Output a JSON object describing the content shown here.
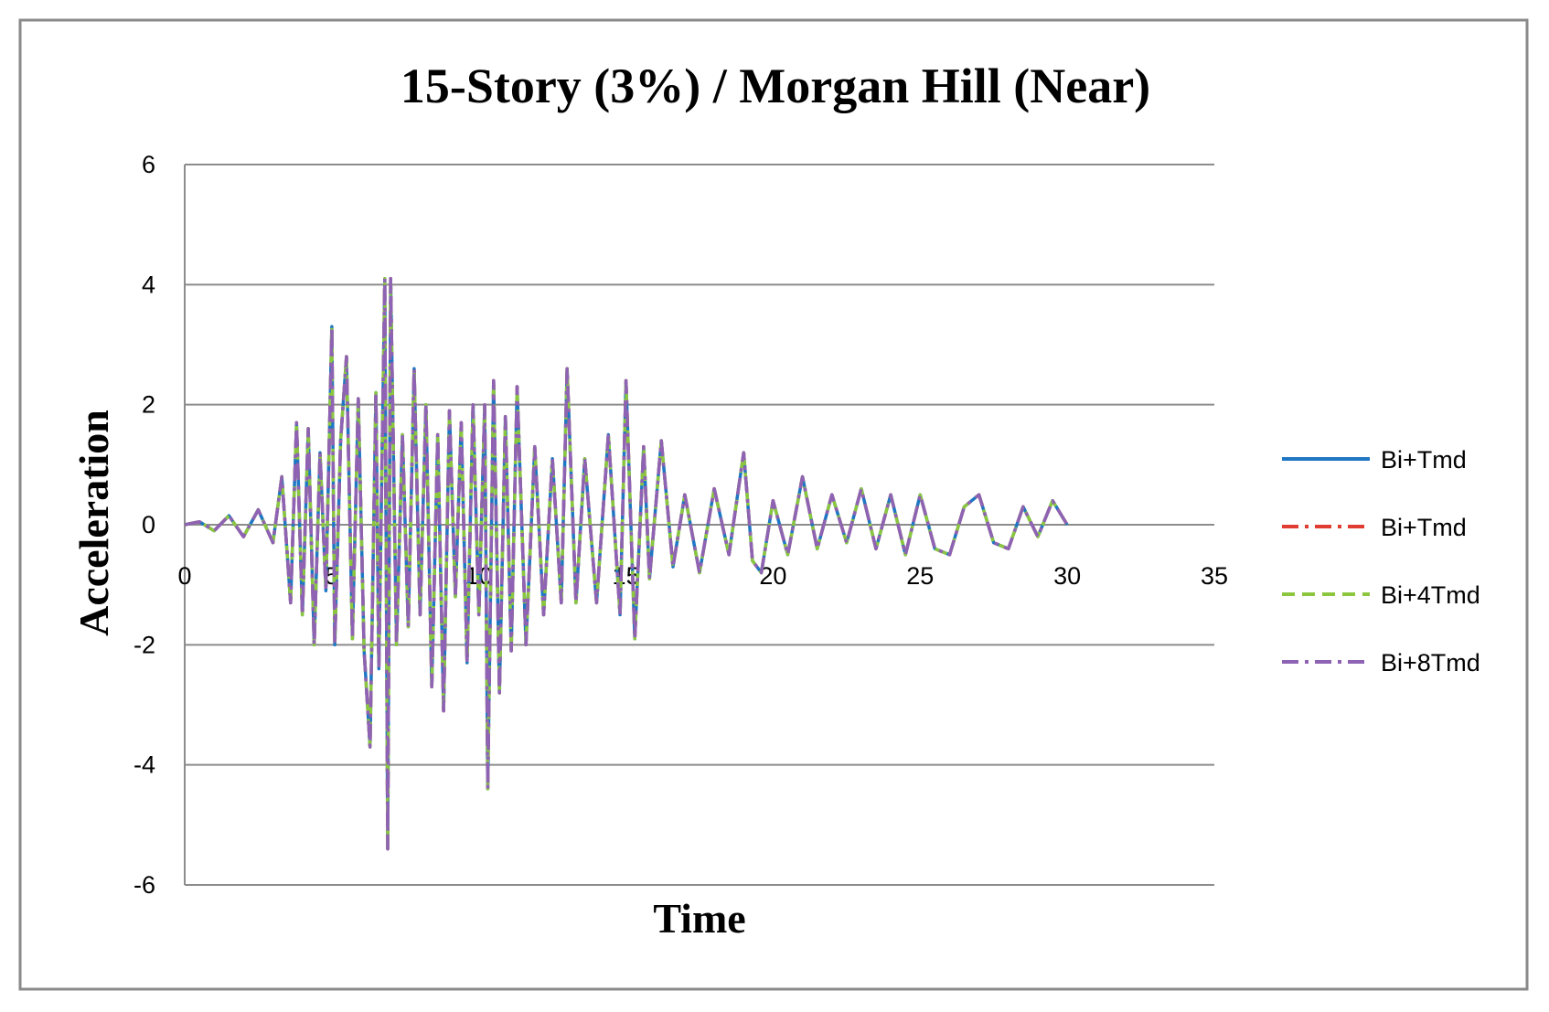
{
  "chart_data": {
    "type": "line",
    "title": "15-Story (3%) / Morgan Hill (Near)",
    "xlabel": "Time",
    "ylabel": "Acceleration",
    "xlim": [
      0,
      35
    ],
    "ylim": [
      -6,
      6
    ],
    "x_ticks": [
      "0",
      "5",
      "10",
      "15",
      "20",
      "25",
      "30",
      "35"
    ],
    "y_ticks": [
      "6",
      "4",
      "2",
      "0",
      "-2",
      "-4",
      "-6"
    ],
    "grid": "horizontal",
    "legend_position": "right",
    "x": [
      0,
      0.5,
      1,
      1.5,
      2,
      2.5,
      3,
      3.3,
      3.6,
      3.8,
      4,
      4.2,
      4.4,
      4.6,
      4.8,
      5,
      5.1,
      5.3,
      5.5,
      5.7,
      5.9,
      6.1,
      6.3,
      6.5,
      6.6,
      6.8,
      6.9,
      7,
      7.2,
      7.4,
      7.6,
      7.8,
      8,
      8.2,
      8.4,
      8.6,
      8.8,
      9,
      9.2,
      9.4,
      9.6,
      9.8,
      10,
      10.2,
      10.3,
      10.5,
      10.7,
      10.9,
      11.1,
      11.3,
      11.6,
      11.9,
      12.2,
      12.5,
      12.8,
      13,
      13.3,
      13.6,
      14,
      14.4,
      14.8,
      15,
      15.3,
      15.6,
      15.8,
      16.2,
      16.6,
      17,
      17.5,
      18,
      18.5,
      19,
      19.3,
      19.6,
      20,
      20.5,
      21,
      21.5,
      22,
      22.5,
      23,
      23.5,
      24,
      24.5,
      25,
      25.5,
      26,
      26.5,
      27,
      27.5,
      28,
      28.5,
      29,
      29.5,
      30
    ],
    "series": [
      {
        "name": "Bi+Tmd",
        "color": "#1f77c4",
        "dash": "solid",
        "values": [
          0,
          0.05,
          -0.1,
          0.15,
          -0.2,
          0.25,
          -0.3,
          0.8,
          -1.3,
          1.7,
          -1.5,
          1.6,
          -2,
          1.2,
          -1.1,
          3.3,
          -2,
          1.4,
          2.8,
          -1.9,
          2.1,
          -2.1,
          -3.7,
          2.2,
          -2.4,
          4.1,
          -5.4,
          4.1,
          -2,
          1.5,
          -1.7,
          2.6,
          -1.5,
          2,
          -2.7,
          1.5,
          -3.1,
          1.9,
          -1.2,
          1.7,
          -2.3,
          2,
          -1.5,
          2,
          -4.4,
          2.4,
          -2.8,
          1.8,
          -2.1,
          2.3,
          -2,
          1.3,
          -1.5,
          1.1,
          -1.3,
          2.6,
          -1.3,
          1.1,
          -1.3,
          1.5,
          -1.5,
          2.4,
          -1.9,
          1.3,
          -0.9,
          1.4,
          -0.7,
          0.5,
          -0.8,
          0.6,
          -0.5,
          1.2,
          -0.6,
          -0.8,
          0.4,
          -0.5,
          0.8,
          -0.4,
          0.5,
          -0.3,
          0.6,
          -0.4,
          0.5,
          -0.5,
          0.5,
          -0.4,
          -0.5,
          0.3,
          0.5,
          -0.3,
          -0.4,
          0.3,
          -0.2,
          0.4,
          0
        ]
      },
      {
        "name": "Bi+Tmd",
        "color": "#e03c31",
        "dash": "dashdot",
        "values": [
          0,
          0.05,
          -0.1,
          0.15,
          -0.2,
          0.25,
          -0.3,
          0.8,
          -1.3,
          1.7,
          -1.5,
          1.6,
          -2,
          1.2,
          -1.1,
          3.3,
          -2,
          1.4,
          2.8,
          -1.9,
          2.1,
          -2.1,
          -3.7,
          2.2,
          -2.4,
          4.1,
          -5.4,
          4.1,
          -2,
          1.5,
          -1.7,
          2.6,
          -1.5,
          2,
          -2.7,
          1.5,
          -3.1,
          1.9,
          -1.2,
          1.7,
          -2.3,
          2,
          -1.5,
          2,
          -4.4,
          2.4,
          -2.8,
          1.8,
          -2.1,
          2.3,
          -2,
          1.3,
          -1.5,
          1.1,
          -1.3,
          2.6,
          -1.3,
          1.1,
          -1.3,
          1.5,
          -1.5,
          2.4,
          -1.9,
          1.3,
          -0.9,
          1.4,
          -0.7,
          0.5,
          -0.8,
          0.6,
          -0.5,
          1.2,
          -0.6,
          -0.8,
          0.4,
          -0.5,
          0.8,
          -0.4,
          0.5,
          -0.3,
          0.6,
          -0.4,
          0.5,
          -0.5,
          0.5,
          -0.4,
          -0.5,
          0.3,
          0.5,
          -0.3,
          -0.4,
          0.3,
          -0.2,
          0.4,
          0
        ]
      },
      {
        "name": "Bi+4Tmd",
        "color": "#8cc63f",
        "dash": "dashed",
        "values": [
          0,
          0.05,
          -0.1,
          0.15,
          -0.2,
          0.25,
          -0.3,
          0.8,
          -1.3,
          1.7,
          -1.5,
          1.6,
          -2,
          1.2,
          -1.1,
          3.3,
          -2,
          1.4,
          2.8,
          -1.9,
          2.1,
          -2.1,
          -3.7,
          2.2,
          -2.4,
          4.1,
          -5.4,
          4.1,
          -2,
          1.5,
          -1.7,
          2.6,
          -1.5,
          2,
          -2.7,
          1.5,
          -3.1,
          1.9,
          -1.2,
          1.7,
          -2.3,
          2,
          -1.5,
          2,
          -4.4,
          2.4,
          -2.8,
          1.8,
          -2.1,
          2.3,
          -2,
          1.3,
          -1.5,
          1.1,
          -1.3,
          2.6,
          -1.3,
          1.1,
          -1.3,
          1.5,
          -1.5,
          2.4,
          -1.9,
          1.3,
          -0.9,
          1.4,
          -0.7,
          0.5,
          -0.8,
          0.6,
          -0.5,
          1.2,
          -0.6,
          -0.8,
          0.4,
          -0.5,
          0.8,
          -0.4,
          0.5,
          -0.3,
          0.6,
          -0.4,
          0.5,
          -0.5,
          0.5,
          -0.4,
          -0.5,
          0.3,
          0.5,
          -0.3,
          -0.4,
          0.3,
          -0.2,
          0.4,
          0
        ]
      },
      {
        "name": "Bi+8Tmd",
        "color": "#8e63b4",
        "dash": "dashdot",
        "values": [
          0,
          0.05,
          -0.1,
          0.15,
          -0.2,
          0.25,
          -0.3,
          0.8,
          -1.3,
          1.7,
          -1.5,
          1.6,
          -2,
          1.2,
          -1.1,
          3.3,
          -2,
          1.4,
          2.8,
          -1.9,
          2.1,
          -2.1,
          -3.7,
          2.2,
          -2.4,
          4.1,
          -5.4,
          4.1,
          -2,
          1.5,
          -1.7,
          2.6,
          -1.5,
          2,
          -2.7,
          1.5,
          -3.1,
          1.9,
          -1.2,
          1.7,
          -2.3,
          2,
          -1.5,
          2,
          -4.4,
          2.4,
          -2.8,
          1.8,
          -2.1,
          2.3,
          -2,
          1.3,
          -1.5,
          1.1,
          -1.3,
          2.6,
          -1.3,
          1.1,
          -1.3,
          1.5,
          -1.5,
          2.4,
          -1.9,
          1.3,
          -0.9,
          1.4,
          -0.7,
          0.5,
          -0.8,
          0.6,
          -0.5,
          1.2,
          -0.6,
          -0.8,
          0.4,
          -0.5,
          0.8,
          -0.4,
          0.5,
          -0.3,
          0.6,
          -0.4,
          0.5,
          -0.5,
          0.5,
          -0.4,
          -0.5,
          0.3,
          0.5,
          -0.3,
          -0.4,
          0.3,
          -0.2,
          0.4,
          0
        ]
      }
    ]
  }
}
